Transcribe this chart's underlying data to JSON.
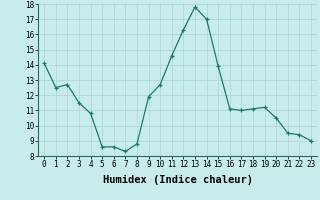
{
  "x": [
    0,
    1,
    2,
    3,
    4,
    5,
    6,
    7,
    8,
    9,
    10,
    11,
    12,
    13,
    14,
    15,
    16,
    17,
    18,
    19,
    20,
    21,
    22,
    23
  ],
  "y": [
    14.1,
    12.5,
    12.7,
    11.5,
    10.8,
    8.6,
    8.6,
    8.3,
    8.8,
    11.9,
    12.7,
    14.6,
    16.3,
    17.8,
    17.0,
    13.9,
    11.1,
    11.0,
    11.1,
    11.2,
    10.5,
    9.5,
    9.4,
    9.0
  ],
  "ylim": [
    8,
    18
  ],
  "xlim": [
    -0.5,
    23.5
  ],
  "yticks": [
    8,
    9,
    10,
    11,
    12,
    13,
    14,
    15,
    16,
    17,
    18
  ],
  "xticks": [
    0,
    1,
    2,
    3,
    4,
    5,
    6,
    7,
    8,
    9,
    10,
    11,
    12,
    13,
    14,
    15,
    16,
    17,
    18,
    19,
    20,
    21,
    22,
    23
  ],
  "xlabel": "Humidex (Indice chaleur)",
  "line_color": "#1a7a6a",
  "marker": "+",
  "marker_color": "#1a7a6a",
  "bg_color": "#c8ecec",
  "grid_color": "#b0d8d8",
  "tick_fontsize": 5.5,
  "xlabel_fontsize": 7.5
}
